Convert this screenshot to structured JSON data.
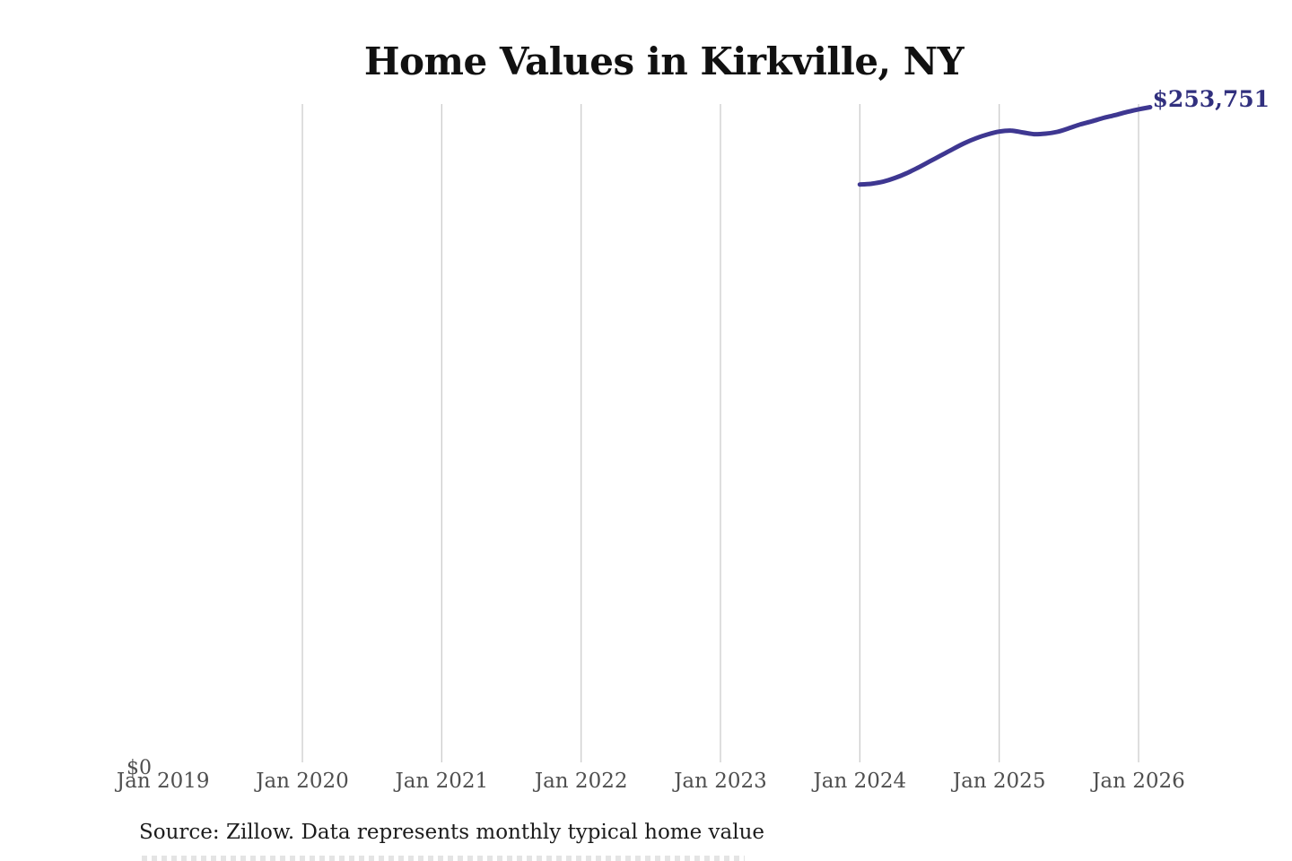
{
  "page": {
    "background": "#ffffff"
  },
  "chart_data": {
    "type": "line",
    "title": "Home Values in Kirkville, NY",
    "source_note": "Source: Zillow. Data represents monthly typical home value",
    "latest_value_label": "$253,751",
    "y_zero_label": "$0",
    "ylabel": "",
    "xlabel": "",
    "ylim": [
      0,
      253751
    ],
    "grid": "vertical-only",
    "legend": "none",
    "x_axis": {
      "ticks": [
        {
          "label": "Jan 2019",
          "year": 2019,
          "gridline": false
        },
        {
          "label": "Jan 2020",
          "year": 2020,
          "gridline": true
        },
        {
          "label": "Jan 2021",
          "year": 2021,
          "gridline": true
        },
        {
          "label": "Jan 2022",
          "year": 2022,
          "gridline": true
        },
        {
          "label": "Jan 2023",
          "year": 2023,
          "gridline": true
        },
        {
          "label": "Jan 2024",
          "year": 2024,
          "gridline": true
        },
        {
          "label": "Jan 2025",
          "year": 2025,
          "gridline": true
        },
        {
          "label": "Jan 2026",
          "year": 2026,
          "gridline": true
        }
      ]
    },
    "series": [
      {
        "name": "Monthly typical home value",
        "points": [
          {
            "date": "2024-01",
            "value": 223800
          },
          {
            "date": "2024-02",
            "value": 224100
          },
          {
            "date": "2024-03",
            "value": 224900
          },
          {
            "date": "2024-04",
            "value": 226300
          },
          {
            "date": "2024-05",
            "value": 228100
          },
          {
            "date": "2024-06",
            "value": 230300
          },
          {
            "date": "2024-07",
            "value": 232700
          },
          {
            "date": "2024-08",
            "value": 235100
          },
          {
            "date": "2024-09",
            "value": 237500
          },
          {
            "date": "2024-10",
            "value": 239800
          },
          {
            "date": "2024-11",
            "value": 241700
          },
          {
            "date": "2024-12",
            "value": 243200
          },
          {
            "date": "2025-01",
            "value": 244300
          },
          {
            "date": "2025-02",
            "value": 244700
          },
          {
            "date": "2025-03",
            "value": 244000
          },
          {
            "date": "2025-04",
            "value": 243300
          },
          {
            "date": "2025-05",
            "value": 243500
          },
          {
            "date": "2025-06",
            "value": 244200
          },
          {
            "date": "2025-07",
            "value": 245600
          },
          {
            "date": "2025-08",
            "value": 247100
          },
          {
            "date": "2025-09",
            "value": 248300
          },
          {
            "date": "2025-10",
            "value": 249600
          },
          {
            "date": "2025-11",
            "value": 250700
          },
          {
            "date": "2025-12",
            "value": 251900
          },
          {
            "date": "2026-01",
            "value": 252900
          },
          {
            "date": "2026-02",
            "value": 253751
          }
        ]
      }
    ],
    "colors": {
      "line": "#3e3791",
      "latest_value_label": "#31307e",
      "gridline": "#cccccc",
      "tick_label": "#4f4f4f",
      "title": "#111111",
      "source": "#1c1c1c"
    }
  }
}
